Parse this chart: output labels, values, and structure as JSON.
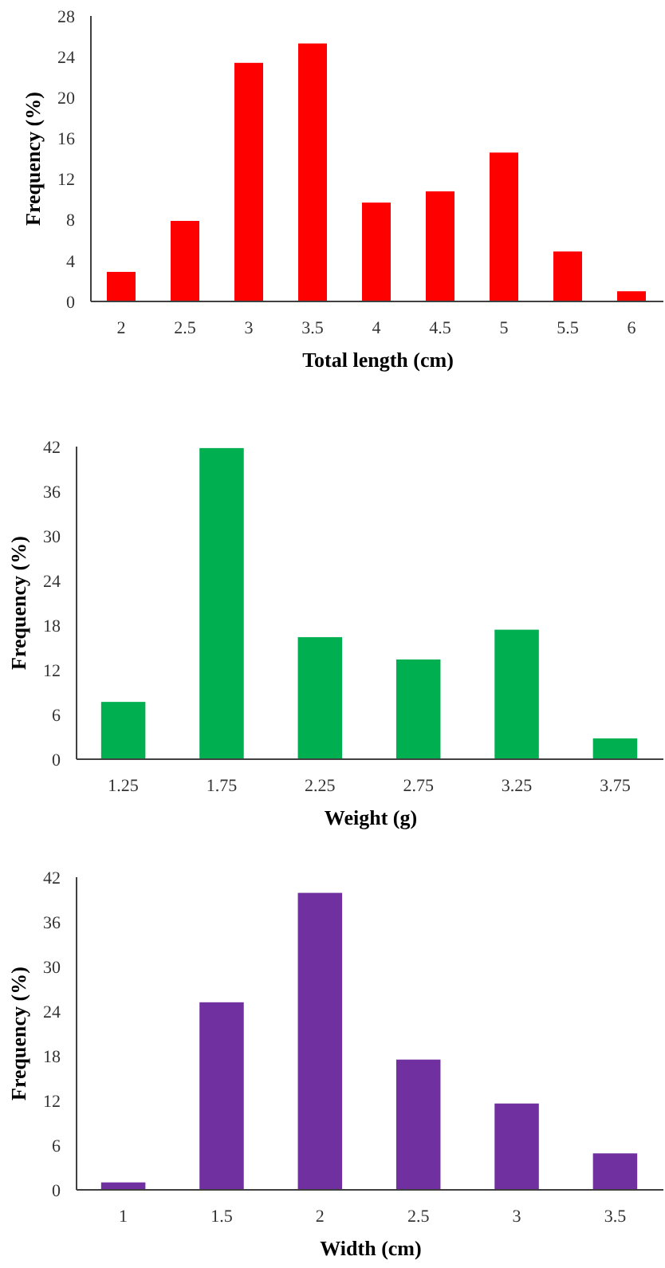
{
  "chart_data": [
    {
      "type": "bar",
      "xlabel": "Total length (cm)",
      "ylabel": "Frequency (%)",
      "categories": [
        "2",
        "2.5",
        "3",
        "3.5",
        "4",
        "4.5",
        "5",
        "5.5",
        "6"
      ],
      "values": [
        2.9,
        7.9,
        23.4,
        25.3,
        9.7,
        10.8,
        14.6,
        4.9,
        1.0
      ],
      "color": "#ff0000",
      "ylim": [
        0,
        28
      ],
      "yticks": [
        0,
        4,
        8,
        12,
        16,
        20,
        24,
        28
      ],
      "grid": false
    },
    {
      "type": "bar",
      "xlabel": "Weight (g)",
      "ylabel": "Frequency (%)",
      "categories": [
        "1.25",
        "1.75",
        "2.25",
        "2.75",
        "3.25",
        "3.75"
      ],
      "values": [
        7.7,
        41.8,
        16.4,
        13.4,
        17.4,
        2.8
      ],
      "color": "#00b050",
      "ylim": [
        0,
        42
      ],
      "yticks": [
        0,
        6,
        12,
        18,
        24,
        30,
        36,
        42
      ],
      "grid": false
    },
    {
      "type": "bar",
      "xlabel": "Width (cm)",
      "ylabel": "Frequency (%)",
      "categories": [
        "1",
        "1.5",
        "2",
        "2.5",
        "3",
        "3.5"
      ],
      "values": [
        1.0,
        25.2,
        39.9,
        17.5,
        11.6,
        4.9
      ],
      "color": "#7030a0",
      "ylim": [
        0,
        42
      ],
      "yticks": [
        0,
        6,
        12,
        18,
        24,
        30,
        36,
        42
      ],
      "grid": false
    }
  ]
}
